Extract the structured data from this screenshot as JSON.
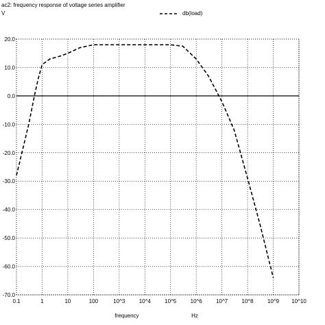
{
  "header": {
    "title": "ac2: frequency response of voltage series amplifier",
    "yunit": "V",
    "legend_label": "db(load)"
  },
  "chart_data": {
    "type": "line",
    "title": "ac2: frequency response of voltage series amplifier",
    "xlabel": "frequency",
    "xunit": "Hz",
    "ylabel": "V",
    "x_scale": "log",
    "xlim": [
      0.1,
      10000000000
    ],
    "ylim": [
      -70,
      20
    ],
    "grid": true,
    "legend_placement": "top-center",
    "x_ticks": [
      0.1,
      1,
      10,
      100,
      1000,
      10000,
      100000,
      1000000,
      10000000,
      100000000,
      1000000000,
      10000000000
    ],
    "x_tick_labels": [
      "0.1",
      "1",
      "10",
      "100",
      "10^3",
      "10^4",
      "10^5",
      "10^6",
      "10^7",
      "10^8",
      "10^9",
      "10^10"
    ],
    "y_ticks": [
      20,
      10,
      0,
      -10,
      -20,
      -30,
      -40,
      -50,
      -60,
      -70
    ],
    "y_tick_labels": [
      "20.0",
      "10.0",
      "0.0",
      "-10.0",
      "-20.0",
      "-30.0",
      "-40.0",
      "-50.0",
      "-60.0",
      "-70.0"
    ],
    "series": [
      {
        "name": "db(load)",
        "color": "#000000",
        "style": "dashed",
        "x": [
          0.1,
          0.3,
          0.5,
          0.7,
          1,
          2,
          5,
          10,
          30,
          100,
          1000,
          10000,
          100000,
          300000,
          1000000,
          3000000,
          10000000,
          30000000,
          100000000,
          300000000,
          1000000000
        ],
        "y": [
          -28,
          -10,
          0,
          6,
          11,
          13,
          14,
          15,
          17,
          18,
          18,
          18,
          18,
          17.5,
          13,
          7,
          -2,
          -12,
          -29,
          -45,
          -64
        ]
      }
    ]
  },
  "colors": {
    "background": "#ffffff",
    "grid": "#000000",
    "curve": "#000000",
    "zero_line": "#000000"
  }
}
